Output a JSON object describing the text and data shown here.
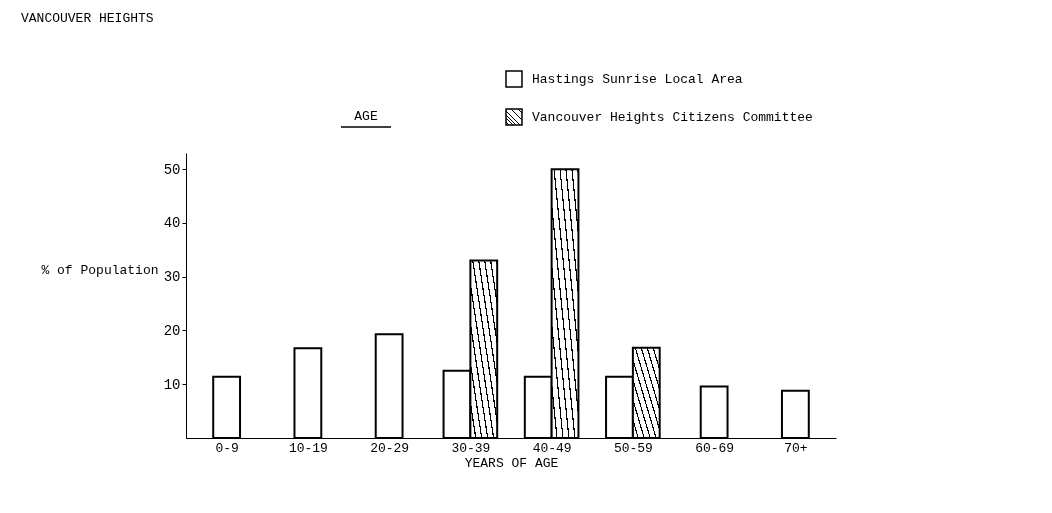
{
  "chart_data": {
    "type": "bar",
    "title": "VANCOUVER HEIGHTS",
    "subtitle": "AGE",
    "xlabel": "YEARS OF AGE",
    "ylabel": "% of Population",
    "categories": [
      "0-9",
      "10-19",
      "20-29",
      "30-39",
      "40-49",
      "50-59",
      "60-69",
      "70+"
    ],
    "series": [
      {
        "name": "Hastings Sunrise Local Area",
        "color": "#ffffff",
        "values": [
          11.4,
          16.7,
          19.3,
          12.5,
          11.4,
          11.4,
          9.6,
          8.8
        ]
      },
      {
        "name": "Vancouver Heights Citizens Committee",
        "color": "#000000",
        "values": [
          null,
          null,
          null,
          33,
          50,
          16.8,
          null,
          null
        ]
      }
    ],
    "ylim": [
      0,
      53
    ],
    "yticks": [
      10,
      20,
      30,
      40,
      50
    ],
    "grid": false,
    "legend": "top right"
  }
}
